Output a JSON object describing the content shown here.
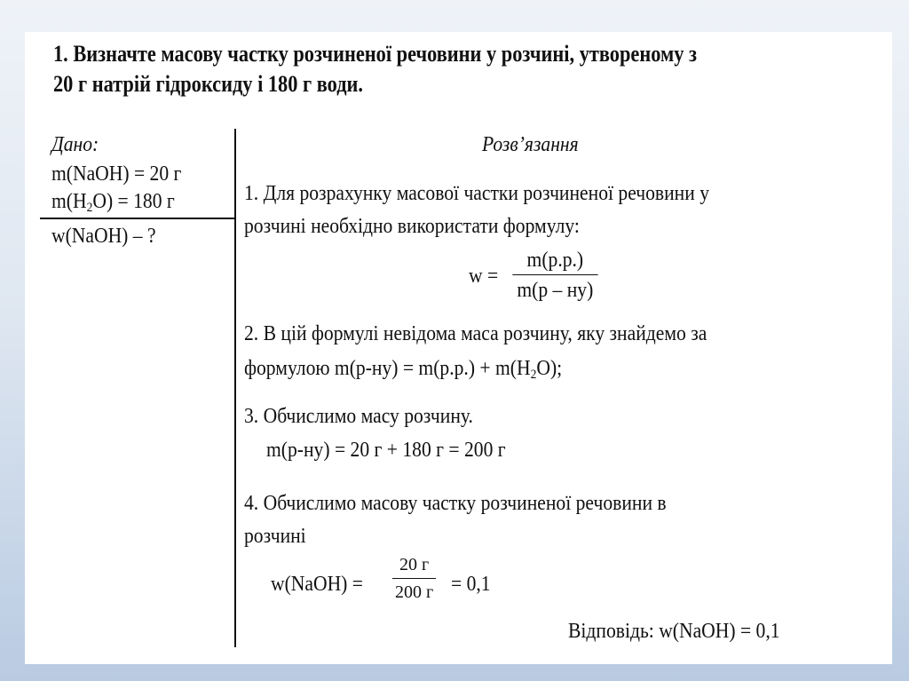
{
  "title": {
    "line1": "1. Визначте масову частку розчиненої речовини у розчині, утвореному  з",
    "line2": "20 г натрій гідроксиду і 180 г води."
  },
  "given": {
    "heading": "Дано:",
    "item1": "m(NaOH) = 20 г",
    "item2_pre": "m(H",
    "item2_sub": "2",
    "item2_post": "O) = 180 г",
    "find": "w(NaOH) – ?"
  },
  "solution": {
    "heading": "Розв’язання",
    "step1_line1": "1. Для розрахунку масової частки розчиненої речовини у",
    "step1_line2": "розчині необхідно використати формулу:",
    "formula1_lhs": "w =",
    "formula1_num": "m(р.р.)",
    "formula1_den": "m(р – ну)",
    "step2_line1": "2. В цій формулі невідома маса розчину, яку знайдемо за",
    "step2_line2_pre": "формулою    m(р-ну) = m(р.р.) + m(H",
    "step2_line2_sub": "2",
    "step2_line2_post": "O);",
    "step3_line1": "3. Обчислимо масу розчину.",
    "step3_line2": "m(р-ну) = 20 г + 180 г = 200 г",
    "step4_line1": "4. Обчислимо масову частку розчиненої речовини в",
    "step4_line2": "розчині",
    "formula2_lhs": "w(NaOH) =",
    "formula2_num": "20 г",
    "formula2_den": "200 г",
    "formula2_rhs": "= 0,1",
    "answer": "Відповідь: w(NaOH) = 0,1"
  }
}
